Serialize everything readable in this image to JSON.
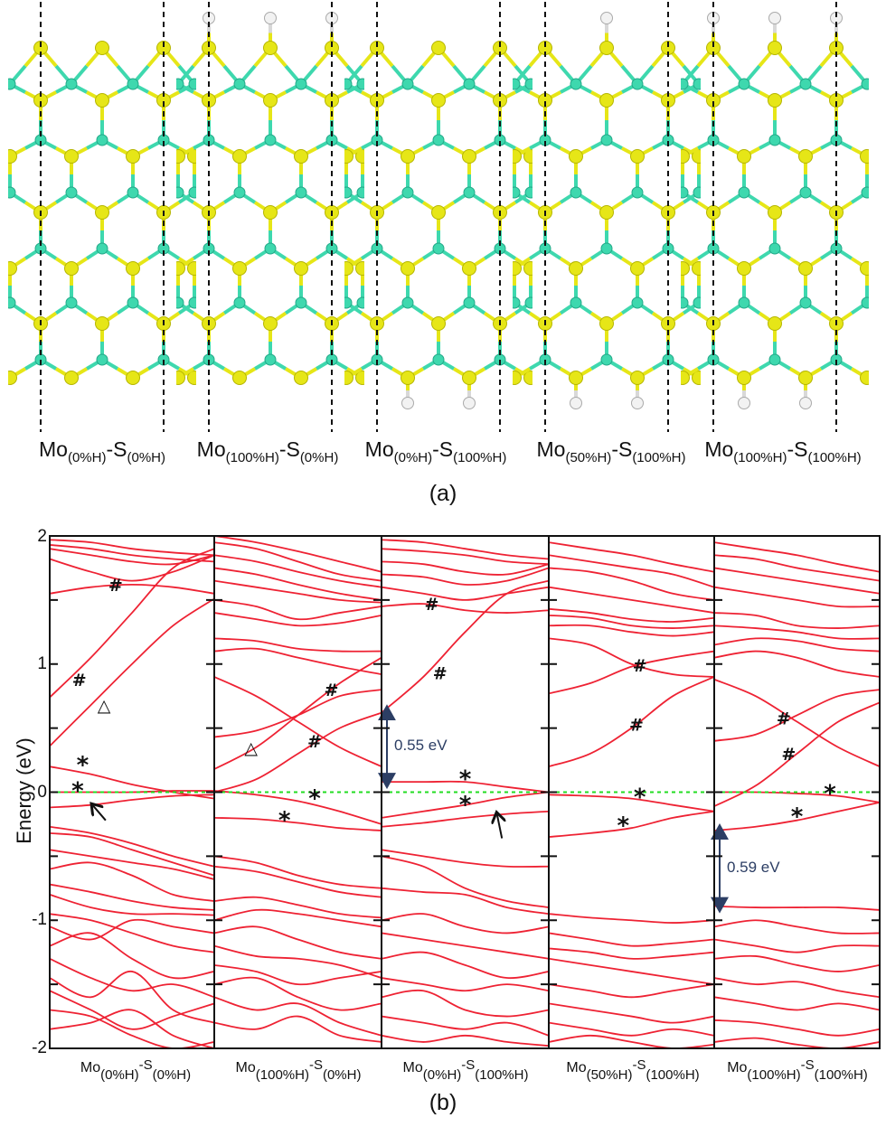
{
  "figure": {
    "part_a_label": "(a)",
    "part_b_label": "(b)"
  },
  "structures": [
    {
      "mo": "Mo",
      "mo_sub": "(0%H)",
      "s": "-S",
      "s_sub": "(0%H)",
      "mo_edge_h_percent": 0,
      "s_edge_h_percent": 0
    },
    {
      "mo": "Mo",
      "mo_sub": "(100%H)",
      "s": "-S",
      "s_sub": "(0%H)",
      "mo_edge_h_percent": 100,
      "s_edge_h_percent": 0
    },
    {
      "mo": "Mo",
      "mo_sub": "(0%H)",
      "s": "-S",
      "s_sub": "(100%H)",
      "mo_edge_h_percent": 0,
      "s_edge_h_percent": 100
    },
    {
      "mo": "Mo",
      "mo_sub": "(50%H)",
      "s": "-S",
      "s_sub": "(100%H)",
      "mo_edge_h_percent": 50,
      "s_edge_h_percent": 100
    },
    {
      "mo": "Mo",
      "mo_sub": "(100%H)",
      "s": "-S",
      "s_sub": "(100%H)",
      "mo_edge_h_percent": 100,
      "s_edge_h_percent": 100
    }
  ],
  "colors": {
    "sulfur": "#e6e617",
    "molybdenum": "#3ed8ae",
    "hydrogen": "#f2f2f2",
    "band": "#ee2233",
    "fermi": "#22dd22",
    "annotation": "#2c3e64"
  },
  "chart_data": {
    "type": "line",
    "ylabel": "Energy (eV)",
    "ylim": [
      -2,
      2
    ],
    "yticks": [
      "2",
      "1",
      "0",
      "-1",
      "-2"
    ],
    "fermi_level": 0,
    "k_points": [
      0,
      0.25,
      0.5,
      0.75,
      1
    ],
    "panels": [
      {
        "bands": [
          [
            0.74,
            1.05,
            1.4,
            1.75,
            1.9
          ],
          [
            0.36,
            0.68,
            1.0,
            1.3,
            1.51
          ],
          [
            0.2,
            0.14,
            0.06,
            0.0,
            -0.05
          ],
          [
            0.0,
            0.0,
            0.0,
            0.01,
            0.01
          ],
          [
            -0.12,
            -0.1,
            -0.06,
            -0.03,
            -0.02
          ],
          [
            1.55,
            1.6,
            1.62,
            1.6,
            1.55
          ],
          [
            1.82,
            1.72,
            1.65,
            1.72,
            1.85
          ],
          [
            1.9,
            1.85,
            1.8,
            1.78,
            1.85
          ],
          [
            1.93,
            1.9,
            1.85,
            1.82,
            1.8
          ],
          [
            1.97,
            1.95,
            1.9,
            1.87,
            1.85
          ],
          [
            -0.27,
            -0.32,
            -0.4,
            -0.5,
            -0.58
          ],
          [
            -0.32,
            -0.35,
            -0.45,
            -0.55,
            -0.65
          ],
          [
            -0.45,
            -0.5,
            -0.55,
            -0.6,
            -0.68
          ],
          [
            -0.6,
            -0.55,
            -0.65,
            -0.8,
            -0.85
          ],
          [
            -0.72,
            -0.78,
            -0.85,
            -0.9,
            -0.92
          ],
          [
            -0.8,
            -0.9,
            -0.95,
            -0.95,
            -0.96
          ],
          [
            -0.95,
            -1.0,
            -1.1,
            -1.2,
            -1.25
          ],
          [
            -1.05,
            -1.15,
            -1.0,
            -1.05,
            -1.1
          ],
          [
            -1.2,
            -1.1,
            -1.3,
            -1.45,
            -1.4
          ],
          [
            -1.3,
            -1.45,
            -1.55,
            -1.5,
            -1.6
          ],
          [
            -1.45,
            -1.6,
            -1.4,
            -1.7,
            -1.8
          ],
          [
            -1.55,
            -1.7,
            -1.85,
            -1.75,
            -1.65
          ],
          [
            -1.7,
            -1.75,
            -1.9,
            -2.0,
            -1.95
          ],
          [
            -1.85,
            -1.8,
            -1.7,
            -1.9,
            -2.0
          ]
        ],
        "markers": [
          {
            "s": "#",
            "k": 0.4,
            "e": 1.62
          },
          {
            "s": "#",
            "k": 0.18,
            "e": 0.88
          },
          {
            "s": "△",
            "k": 0.33,
            "e": 0.68
          },
          {
            "s": "*",
            "k": 0.2,
            "e": 0.2
          },
          {
            "s": "*",
            "k": 0.17,
            "e": 0.0
          }
        ],
        "arrows": [
          {
            "from": [
              0.34,
              -0.22
            ],
            "to": [
              0.26,
              -0.1
            ]
          }
        ]
      },
      {
        "bands": [
          [
            0.18,
            0.35,
            0.6,
            0.85,
            1.05
          ],
          [
            0.9,
            0.75,
            0.55,
            0.35,
            0.2
          ],
          [
            0.43,
            0.48,
            0.6,
            0.75,
            0.8
          ],
          [
            0.0,
            0.1,
            0.3,
            0.5,
            0.62
          ],
          [
            0.01,
            -0.02,
            -0.07,
            -0.15,
            -0.25
          ],
          [
            -0.2,
            -0.21,
            -0.24,
            -0.28,
            -0.3
          ],
          [
            1.1,
            1.12,
            1.05,
            0.98,
            0.92
          ],
          [
            1.2,
            1.18,
            1.12,
            1.1,
            1.1
          ],
          [
            1.4,
            1.35,
            1.3,
            1.32,
            1.38
          ],
          [
            1.5,
            1.45,
            1.35,
            1.4,
            1.45
          ],
          [
            1.65,
            1.6,
            1.55,
            1.5,
            1.48
          ],
          [
            1.75,
            1.7,
            1.62,
            1.55,
            1.5
          ],
          [
            1.85,
            1.8,
            1.72,
            1.65,
            1.6
          ],
          [
            1.95,
            1.9,
            1.8,
            1.7,
            1.65
          ],
          [
            2.0,
            1.95,
            1.88,
            1.8,
            1.72
          ],
          [
            -0.5,
            -0.55,
            -0.65,
            -0.72,
            -0.75
          ],
          [
            -0.58,
            -0.62,
            -0.7,
            -0.78,
            -0.82
          ],
          [
            -0.85,
            -0.82,
            -0.88,
            -0.95,
            -0.98
          ],
          [
            -1.0,
            -0.92,
            -0.95,
            -1.0,
            -1.05
          ],
          [
            -1.1,
            -1.05,
            -1.15,
            -1.25,
            -1.3
          ],
          [
            -1.2,
            -1.28,
            -1.3,
            -1.35,
            -1.45
          ],
          [
            -1.35,
            -1.4,
            -1.5,
            -1.45,
            -1.4
          ],
          [
            -1.5,
            -1.45,
            -1.6,
            -1.7,
            -1.65
          ],
          [
            -1.6,
            -1.7,
            -1.65,
            -1.8,
            -1.9
          ],
          [
            -1.8,
            -1.85,
            -1.75,
            -1.9,
            -1.95
          ]
        ],
        "markers": [
          {
            "s": "△",
            "k": 0.22,
            "e": 0.35
          },
          {
            "s": "#",
            "k": 0.7,
            "e": 0.8
          },
          {
            "s": "#",
            "k": 0.6,
            "e": 0.4
          },
          {
            "s": "*",
            "k": 0.6,
            "e": -0.06
          },
          {
            "s": "*",
            "k": 0.42,
            "e": -0.23
          }
        ],
        "arrows": []
      },
      {
        "bands": [
          [
            0.62,
            0.9,
            1.25,
            1.55,
            1.65
          ],
          [
            0.08,
            0.08,
            0.08,
            0.04,
            0.0
          ],
          [
            -0.2,
            -0.15,
            -0.1,
            -0.04,
            0.0
          ],
          [
            -0.27,
            -0.24,
            -0.2,
            -0.17,
            -0.15
          ],
          [
            1.45,
            1.47,
            1.42,
            1.4,
            1.42
          ],
          [
            1.6,
            1.55,
            1.5,
            1.55,
            1.6
          ],
          [
            1.7,
            1.68,
            1.62,
            1.65,
            1.75
          ],
          [
            1.8,
            1.78,
            1.72,
            1.7,
            1.78
          ],
          [
            1.9,
            1.88,
            1.85,
            1.8,
            1.78
          ],
          [
            1.97,
            1.95,
            1.9,
            1.85,
            1.82
          ],
          [
            -0.45,
            -0.5,
            -0.55,
            -0.58,
            -0.58
          ],
          [
            -0.5,
            -0.58,
            -0.75,
            -0.85,
            -0.9
          ],
          [
            -0.75,
            -0.78,
            -0.8,
            -0.9,
            -0.95
          ],
          [
            -1.0,
            -0.95,
            -1.05,
            -1.1,
            -1.05
          ],
          [
            -1.1,
            -1.15,
            -1.2,
            -1.25,
            -1.3
          ],
          [
            -1.3,
            -1.25,
            -1.35,
            -1.45,
            -1.4
          ],
          [
            -1.45,
            -1.5,
            -1.55,
            -1.5,
            -1.55
          ],
          [
            -1.6,
            -1.55,
            -1.7,
            -1.75,
            -1.7
          ],
          [
            -1.75,
            -1.8,
            -1.85,
            -1.8,
            -1.9
          ],
          [
            -1.9,
            -1.95,
            -1.9,
            -1.95,
            -1.98
          ]
        ],
        "markers": [
          {
            "s": "#",
            "k": 0.3,
            "e": 1.47
          },
          {
            "s": "#",
            "k": 0.35,
            "e": 0.93
          },
          {
            "s": "*",
            "k": 0.5,
            "e": 0.09
          },
          {
            "s": "*",
            "k": 0.5,
            "e": -0.11
          }
        ],
        "arrows": [
          {
            "from": [
              0.72,
              -0.36
            ],
            "to": [
              0.69,
              -0.17
            ]
          }
        ],
        "gap": {
          "label": "0.55 eV",
          "from": 0.08,
          "to": 0.63
        }
      },
      {
        "bands": [
          [
            0.2,
            0.3,
            0.5,
            0.75,
            0.9
          ],
          [
            0.77,
            0.85,
            0.98,
            1.05,
            1.1
          ],
          [
            1.2,
            1.15,
            1.0,
            0.92,
            0.9
          ],
          [
            -0.02,
            -0.03,
            -0.05,
            -0.1,
            -0.15
          ],
          [
            -0.35,
            -0.32,
            -0.28,
            -0.2,
            -0.15
          ],
          [
            1.3,
            1.3,
            1.25,
            1.22,
            1.25
          ],
          [
            1.38,
            1.36,
            1.3,
            1.28,
            1.3
          ],
          [
            1.43,
            1.4,
            1.35,
            1.33,
            1.36
          ],
          [
            1.6,
            1.55,
            1.5,
            1.45,
            1.4
          ],
          [
            1.75,
            1.72,
            1.65,
            1.55,
            1.5
          ],
          [
            1.85,
            1.8,
            1.75,
            1.7,
            1.6
          ],
          [
            1.95,
            1.9,
            1.85,
            1.78,
            1.72
          ],
          [
            -0.95,
            -0.98,
            -1.0,
            -1.02,
            -1.0
          ],
          [
            -1.1,
            -1.15,
            -1.2,
            -1.18,
            -1.15
          ],
          [
            -1.22,
            -1.25,
            -1.3,
            -1.28,
            -1.25
          ],
          [
            -1.3,
            -1.35,
            -1.4,
            -1.45,
            -1.5
          ],
          [
            -1.5,
            -1.55,
            -1.6,
            -1.55,
            -1.5
          ],
          [
            -1.65,
            -1.7,
            -1.75,
            -1.8,
            -1.75
          ],
          [
            -1.8,
            -1.85,
            -1.9,
            -1.85,
            -1.9
          ],
          [
            -1.95,
            -1.9,
            -1.95,
            -2.0,
            -1.97
          ]
        ],
        "markers": [
          {
            "s": "#",
            "k": 0.55,
            "e": 0.99
          },
          {
            "s": "#",
            "k": 0.53,
            "e": 0.53
          },
          {
            "s": "*",
            "k": 0.55,
            "e": -0.05
          },
          {
            "s": "*",
            "k": 0.45,
            "e": -0.27
          }
        ],
        "arrows": []
      },
      {
        "bands": [
          [
            0.88,
            0.75,
            0.55,
            0.35,
            0.2
          ],
          [
            0.4,
            0.45,
            0.6,
            0.75,
            0.8
          ],
          [
            -0.11,
            0.05,
            0.3,
            0.55,
            0.7
          ],
          [
            0.0,
            0.0,
            -0.01,
            -0.03,
            -0.08
          ],
          [
            -0.3,
            -0.27,
            -0.22,
            -0.15,
            -0.08
          ],
          [
            1.05,
            1.1,
            1.05,
            0.95,
            0.9
          ],
          [
            1.15,
            1.2,
            1.18,
            1.12,
            1.1
          ],
          [
            1.3,
            1.28,
            1.25,
            1.2,
            1.2
          ],
          [
            1.4,
            1.38,
            1.3,
            1.28,
            1.3
          ],
          [
            1.6,
            1.55,
            1.5,
            1.45,
            1.45
          ],
          [
            1.75,
            1.7,
            1.65,
            1.6,
            1.55
          ],
          [
            1.85,
            1.82,
            1.75,
            1.7,
            1.65
          ],
          [
            1.95,
            1.9,
            1.85,
            1.78,
            1.72
          ],
          [
            -0.89,
            -0.9,
            -0.9,
            -0.9,
            -0.92
          ],
          [
            -1.05,
            -1.0,
            -1.05,
            -1.1,
            -1.1
          ],
          [
            -1.15,
            -1.2,
            -1.25,
            -1.2,
            -1.2
          ],
          [
            -1.3,
            -1.28,
            -1.35,
            -1.4,
            -1.35
          ],
          [
            -1.45,
            -1.5,
            -1.48,
            -1.55,
            -1.6
          ],
          [
            -1.6,
            -1.65,
            -1.7,
            -1.65,
            -1.7
          ],
          [
            -1.78,
            -1.8,
            -1.85,
            -1.9,
            -1.85
          ],
          [
            -1.95,
            -1.92,
            -1.97,
            -2.0,
            -1.95
          ]
        ],
        "markers": [
          {
            "s": "#",
            "k": 0.42,
            "e": 0.58
          },
          {
            "s": "#",
            "k": 0.45,
            "e": 0.3
          },
          {
            "s": "*",
            "k": 0.7,
            "e": -0.02
          },
          {
            "s": "*",
            "k": 0.5,
            "e": -0.2
          }
        ],
        "arrows": [],
        "gap": {
          "label": "0.59 eV",
          "from": -0.3,
          "to": -0.89
        }
      }
    ]
  }
}
